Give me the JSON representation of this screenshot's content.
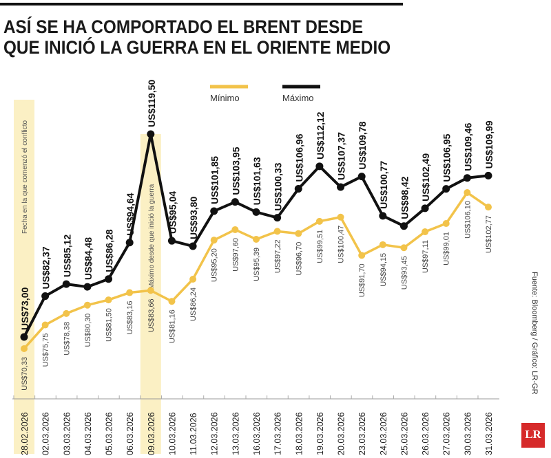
{
  "title_lines": [
    "ASÍ SE HA COMPORTADO EL BRENT DESDE",
    "QUE INICIÓ LA GUERRA EN EL ORIENTE MEDIO"
  ],
  "source": "Fuente: Bloomberg / Gráfico: LR-GR",
  "logo": "LR",
  "colors": {
    "min": "#f2c34a",
    "max": "#111111",
    "highlight": "#fbf0c4"
  },
  "chart_data": {
    "type": "line",
    "title": "ASÍ SE HA COMPORTADO EL BRENT DESDE QUE INICIÓ LA GUERRA EN EL ORIENTE MEDIO",
    "legend_position": "top-center",
    "grid": false,
    "categories": [
      "28.02.2026",
      "02.03.2026",
      "03.03.2026",
      "04.03.2026",
      "05.03.2026",
      "06.03.2026",
      "09.03.2026",
      "10.03.2026",
      "11.03.2026",
      "12.03.2026",
      "13.03.2026",
      "16.03.2026",
      "17.03.2026",
      "18.03.2026",
      "19.03.2026",
      "20.03.2026",
      "23.03.2026",
      "24.03.2026",
      "25.03.2026",
      "26.03.2026",
      "27.03.2026",
      "30.03.2026",
      "31.03.2026"
    ],
    "series": [
      {
        "name": "Mínimo",
        "values": [
          70.33,
          75.75,
          78.38,
          80.3,
          81.5,
          83.16,
          83.66,
          81.16,
          86.24,
          95.2,
          97.6,
          95.39,
          97.22,
          96.7,
          99.51,
          100.47,
          91.7,
          94.15,
          93.45,
          97.11,
          99.01,
          106.1,
          102.77
        ],
        "labels": [
          "US$70,33",
          "US$75,75",
          "US$78,38",
          "US$80,30",
          "US$81,50",
          "US$83,16",
          "US$83,66",
          "US$81,16",
          "US$86,24",
          "US$95,20",
          "US$97,60",
          "US$95,39",
          "US$97,22",
          "US$96,70",
          "US$99,51",
          "US$100,47",
          "US$91,70",
          "US$94,15",
          "US$93,45",
          "US$97,11",
          "US$99,01",
          "US$106,10",
          "US$102,77"
        ]
      },
      {
        "name": "Máximo",
        "values": [
          73.0,
          82.37,
          85.12,
          84.48,
          86.28,
          94.64,
          119.5,
          95.04,
          93.8,
          101.85,
          103.95,
          101.63,
          100.33,
          106.96,
          112.12,
          107.37,
          109.78,
          100.77,
          98.42,
          102.49,
          106.95,
          109.46,
          109.99
        ],
        "labels": [
          "US$73,00",
          "US$82,37",
          "US$85,12",
          "US$84,48",
          "US$86,28",
          "US$94,64",
          "US$119,50",
          "US$95,04",
          "US$93,80",
          "US$101,85",
          "US$103,95",
          "US$101,63",
          "US$100,33",
          "US$106,96",
          "US$112,12",
          "US$107,37",
          "US$109,78",
          "US$100,77",
          "US$98,42",
          "US$102,49",
          "US$106,95",
          "US$109,46",
          "US$109,99"
        ]
      }
    ],
    "annotations": [
      {
        "category": "28.02.2026",
        "text": "Fecha en la que comenzó el conflicto"
      },
      {
        "category": "09.03.2026",
        "text": "Máximo desde que inició la guerra"
      }
    ]
  }
}
